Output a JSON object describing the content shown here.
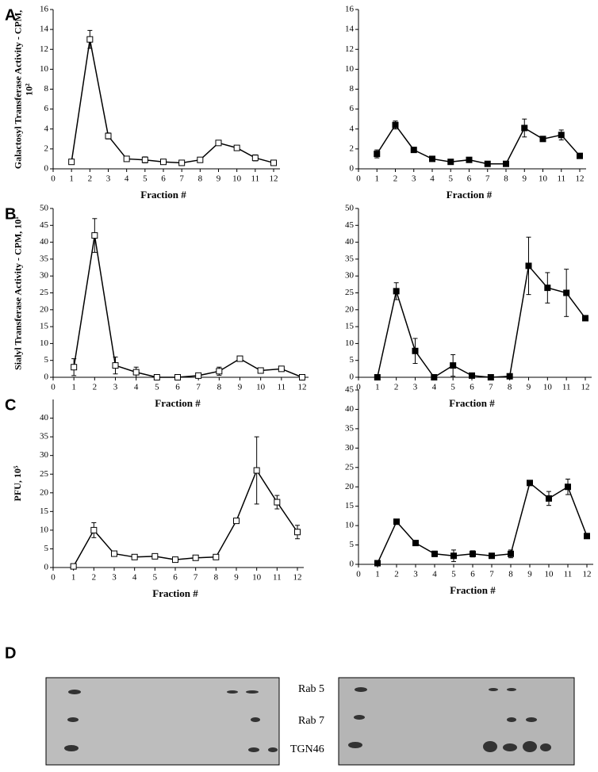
{
  "chart_data": [
    {
      "type": "line",
      "panel_label": "A",
      "y_label": "Galactosyl Transferase Activity - CPM, 10²",
      "x_label": "Fraction #",
      "marker": "open-square",
      "color": "#000000",
      "x": [
        1,
        2,
        3,
        4,
        5,
        6,
        7,
        8,
        9,
        10,
        11,
        12
      ],
      "values": [
        0.7,
        13.0,
        3.3,
        1.0,
        0.9,
        0.7,
        0.6,
        0.9,
        2.6,
        2.1,
        1.1,
        0.6
      ],
      "errors": [
        null,
        0.9,
        0.3,
        null,
        0.3,
        null,
        null,
        null,
        null,
        null,
        0.3,
        null
      ],
      "xlim": [
        0,
        12
      ],
      "xticks": [
        0,
        1,
        2,
        3,
        4,
        5,
        6,
        7,
        8,
        9,
        10,
        11,
        12
      ],
      "ylim": [
        0,
        16
      ],
      "yticks": [
        0,
        2,
        4,
        6,
        8,
        10,
        12,
        14,
        16
      ]
    },
    {
      "type": "line",
      "x_label": "Fraction #",
      "marker": "filled-square",
      "color": "#000000",
      "x": [
        1,
        2,
        3,
        4,
        5,
        6,
        7,
        8,
        9,
        10,
        11,
        12
      ],
      "values": [
        1.5,
        4.4,
        1.9,
        1.0,
        0.7,
        0.9,
        0.5,
        0.5,
        4.1,
        3.0,
        3.4,
        1.3
      ],
      "errors": [
        0.4,
        0.4,
        null,
        null,
        null,
        null,
        null,
        null,
        0.9,
        null,
        0.5,
        null
      ],
      "xlim": [
        0,
        12
      ],
      "xticks": [
        0,
        1,
        2,
        3,
        4,
        5,
        6,
        7,
        8,
        9,
        10,
        11,
        12
      ],
      "ylim": [
        0,
        16
      ],
      "yticks": [
        0,
        2,
        4,
        6,
        8,
        10,
        12,
        14,
        16
      ]
    },
    {
      "type": "line",
      "panel_label": "B",
      "y_label": "Sialyl Transferase Activity - CPM, 10¹",
      "x_label": "Fraction #",
      "marker": "open-square",
      "color": "#000000",
      "x": [
        1,
        2,
        3,
        4,
        5,
        6,
        7,
        8,
        9,
        10,
        11,
        12
      ],
      "values": [
        3,
        42,
        3.5,
        1.5,
        0,
        0,
        0.5,
        1.8,
        5.5,
        2,
        2.5,
        0
      ],
      "errors": [
        2.5,
        5,
        2.5,
        1.5,
        null,
        null,
        null,
        1.2,
        null,
        null,
        null,
        null
      ],
      "xlim": [
        0,
        12
      ],
      "xticks": [
        0,
        1,
        2,
        3,
        4,
        5,
        6,
        7,
        8,
        9,
        10,
        11,
        12
      ],
      "ylim": [
        0,
        50
      ],
      "yticks": [
        0,
        5,
        10,
        15,
        20,
        25,
        30,
        35,
        40,
        45,
        50
      ]
    },
    {
      "type": "line",
      "x_label": "Fraction #",
      "marker": "filled-square",
      "color": "#000000",
      "x": [
        1,
        2,
        3,
        4,
        5,
        6,
        7,
        8,
        9,
        10,
        11,
        12
      ],
      "values": [
        0,
        25.5,
        7.8,
        0,
        3.5,
        0.5,
        0,
        0.3,
        33,
        26.5,
        25,
        17.5
      ],
      "errors": [
        null,
        2.5,
        3.7,
        null,
        3.2,
        null,
        null,
        null,
        8.5,
        4.5,
        7,
        null
      ],
      "xlim": [
        0,
        12
      ],
      "xticks": [
        0,
        1,
        2,
        3,
        4,
        5,
        6,
        7,
        8,
        9,
        10,
        11,
        12
      ],
      "ylim": [
        0,
        50
      ],
      "yticks": [
        0,
        5,
        10,
        15,
        20,
        25,
        30,
        35,
        40,
        45,
        50
      ]
    },
    {
      "type": "line",
      "panel_label": "C",
      "y_label": "PFU, 10⁵",
      "x_label": "Fraction #",
      "marker": "open-square",
      "color": "#000000",
      "x": [
        1,
        2,
        3,
        4,
        5,
        6,
        7,
        8,
        9,
        10,
        11,
        12
      ],
      "values": [
        0.3,
        10,
        3.7,
        2.8,
        3,
        2.1,
        2.6,
        2.8,
        12.5,
        26,
        17.5,
        9.5
      ],
      "errors": [
        null,
        2,
        null,
        null,
        null,
        null,
        null,
        null,
        null,
        9,
        1.8,
        1.8
      ],
      "xlim": [
        0,
        12
      ],
      "xticks": [
        0,
        1,
        2,
        3,
        4,
        5,
        6,
        7,
        8,
        9,
        10,
        11,
        12
      ],
      "ylim": [
        0,
        45
      ],
      "yticks": [
        0,
        5,
        10,
        15,
        20,
        25,
        30,
        35,
        40
      ]
    },
    {
      "type": "line",
      "x_label": "Fraction #",
      "marker": "filled-square",
      "color": "#000000",
      "x": [
        1,
        2,
        3,
        4,
        5,
        6,
        7,
        8,
        9,
        10,
        11,
        12
      ],
      "values": [
        0.3,
        11,
        5.5,
        2.7,
        2.2,
        2.7,
        2.2,
        2.7,
        21,
        17,
        20,
        7.3
      ],
      "errors": [
        null,
        null,
        null,
        0.7,
        1.5,
        0.8,
        null,
        1,
        null,
        1.8,
        2,
        null
      ],
      "xlim": [
        0,
        12
      ],
      "xticks": [
        0,
        1,
        2,
        3,
        4,
        5,
        6,
        7,
        8,
        9,
        10,
        11,
        12
      ],
      "ylim": [
        0,
        45
      ],
      "yticks": [
        0,
        5,
        10,
        15,
        20,
        25,
        30,
        35,
        40,
        45
      ]
    }
  ],
  "blot": {
    "panel_label": "D",
    "rows": [
      "Rab 5",
      "Rab 7",
      "TGN46"
    ]
  }
}
